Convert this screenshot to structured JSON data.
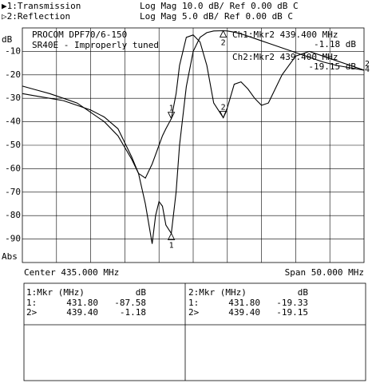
{
  "chart_data": {
    "type": "line",
    "ylabel": "dB",
    "bottom_label": "Abs",
    "annotations": [
      "PROCOM DPF70/6-150",
      "SR40E - Improperly tuned"
    ],
    "readouts": [
      "Ch1:Mkr2 439.400 MHz",
      "-1.18 dB",
      "Ch2:Mkr2 439.400 MHz",
      "-19.15 dB"
    ],
    "center": "Center 435.000 MHz",
    "span": "Span 50.000 MHz",
    "xlim": [
      410,
      460
    ],
    "ylim": [
      -100,
      0
    ],
    "yticks": [
      -10,
      -20,
      -30,
      -40,
      -50,
      -60,
      -70,
      -80,
      -90
    ],
    "y2lim": [
      -50,
      0
    ],
    "grid": true,
    "x": [
      410,
      412,
      414,
      416,
      418,
      420,
      422,
      424,
      426,
      427,
      428,
      429,
      429.5,
      430,
      430.5,
      431,
      431.8,
      432.5,
      433,
      434,
      435,
      436,
      437,
      438,
      439.4,
      440,
      441,
      442,
      443,
      444,
      445,
      446,
      448,
      450,
      452,
      454,
      456,
      458,
      460
    ],
    "series": [
      {
        "name": "▶1:Transmission",
        "scale": "Log Mag  10.0 dB/  Ref   0.00 dB  C",
        "color": "#000000",
        "values": [
          -28,
          -29,
          -30,
          -31,
          -33,
          -35,
          -38,
          -43,
          -55,
          -62,
          -75,
          -92,
          -80,
          -74,
          -76,
          -84,
          -87.58,
          -70,
          -50,
          -25,
          -10,
          -4,
          -2,
          -1.3,
          -1.18,
          -1.3,
          -1.8,
          -2.5,
          -3.5,
          -4.5,
          -5.5,
          -6.5,
          -8.5,
          -10.5,
          -12.5,
          -14.5,
          -16,
          -17,
          -18
        ]
      },
      {
        "name": "▷2:Reflection",
        "scale": "Log Mag   5.0 dB/  Ref   0.00 dB  C",
        "color": "#000000",
        "axis": "y2",
        "values": [
          -12.4,
          -13.2,
          -14,
          -15,
          -16,
          -18,
          -20,
          -23,
          -28,
          -31,
          -32,
          -29,
          -27,
          -25,
          -23,
          -21.5,
          -19.33,
          -14,
          -8,
          -2,
          -1.5,
          -3,
          -8,
          -16,
          -19.15,
          -17,
          -12,
          -11.5,
          -13,
          -15,
          -16.5,
          -16,
          -10,
          -6,
          -5,
          -6,
          -7,
          -8,
          -9
        ]
      }
    ],
    "markers": [
      {
        "label": "1",
        "x": 431.8
      },
      {
        "label": "2",
        "x": 439.4
      }
    ],
    "ref_marks": [
      "2",
      "4"
    ],
    "marker_tables": [
      {
        "header": [
          "1:Mkr (MHz)",
          "dB"
        ],
        "rows": [
          [
            "1:",
            "431.80",
            "-87.58"
          ],
          [
            "2>",
            "439.40",
            "-1.18"
          ]
        ]
      },
      {
        "header": [
          "2:Mkr (MHz)",
          "dB"
        ],
        "rows": [
          [
            "1:",
            "431.80",
            "-19.33"
          ],
          [
            "2>",
            "439.40",
            "-19.15"
          ]
        ]
      }
    ]
  }
}
